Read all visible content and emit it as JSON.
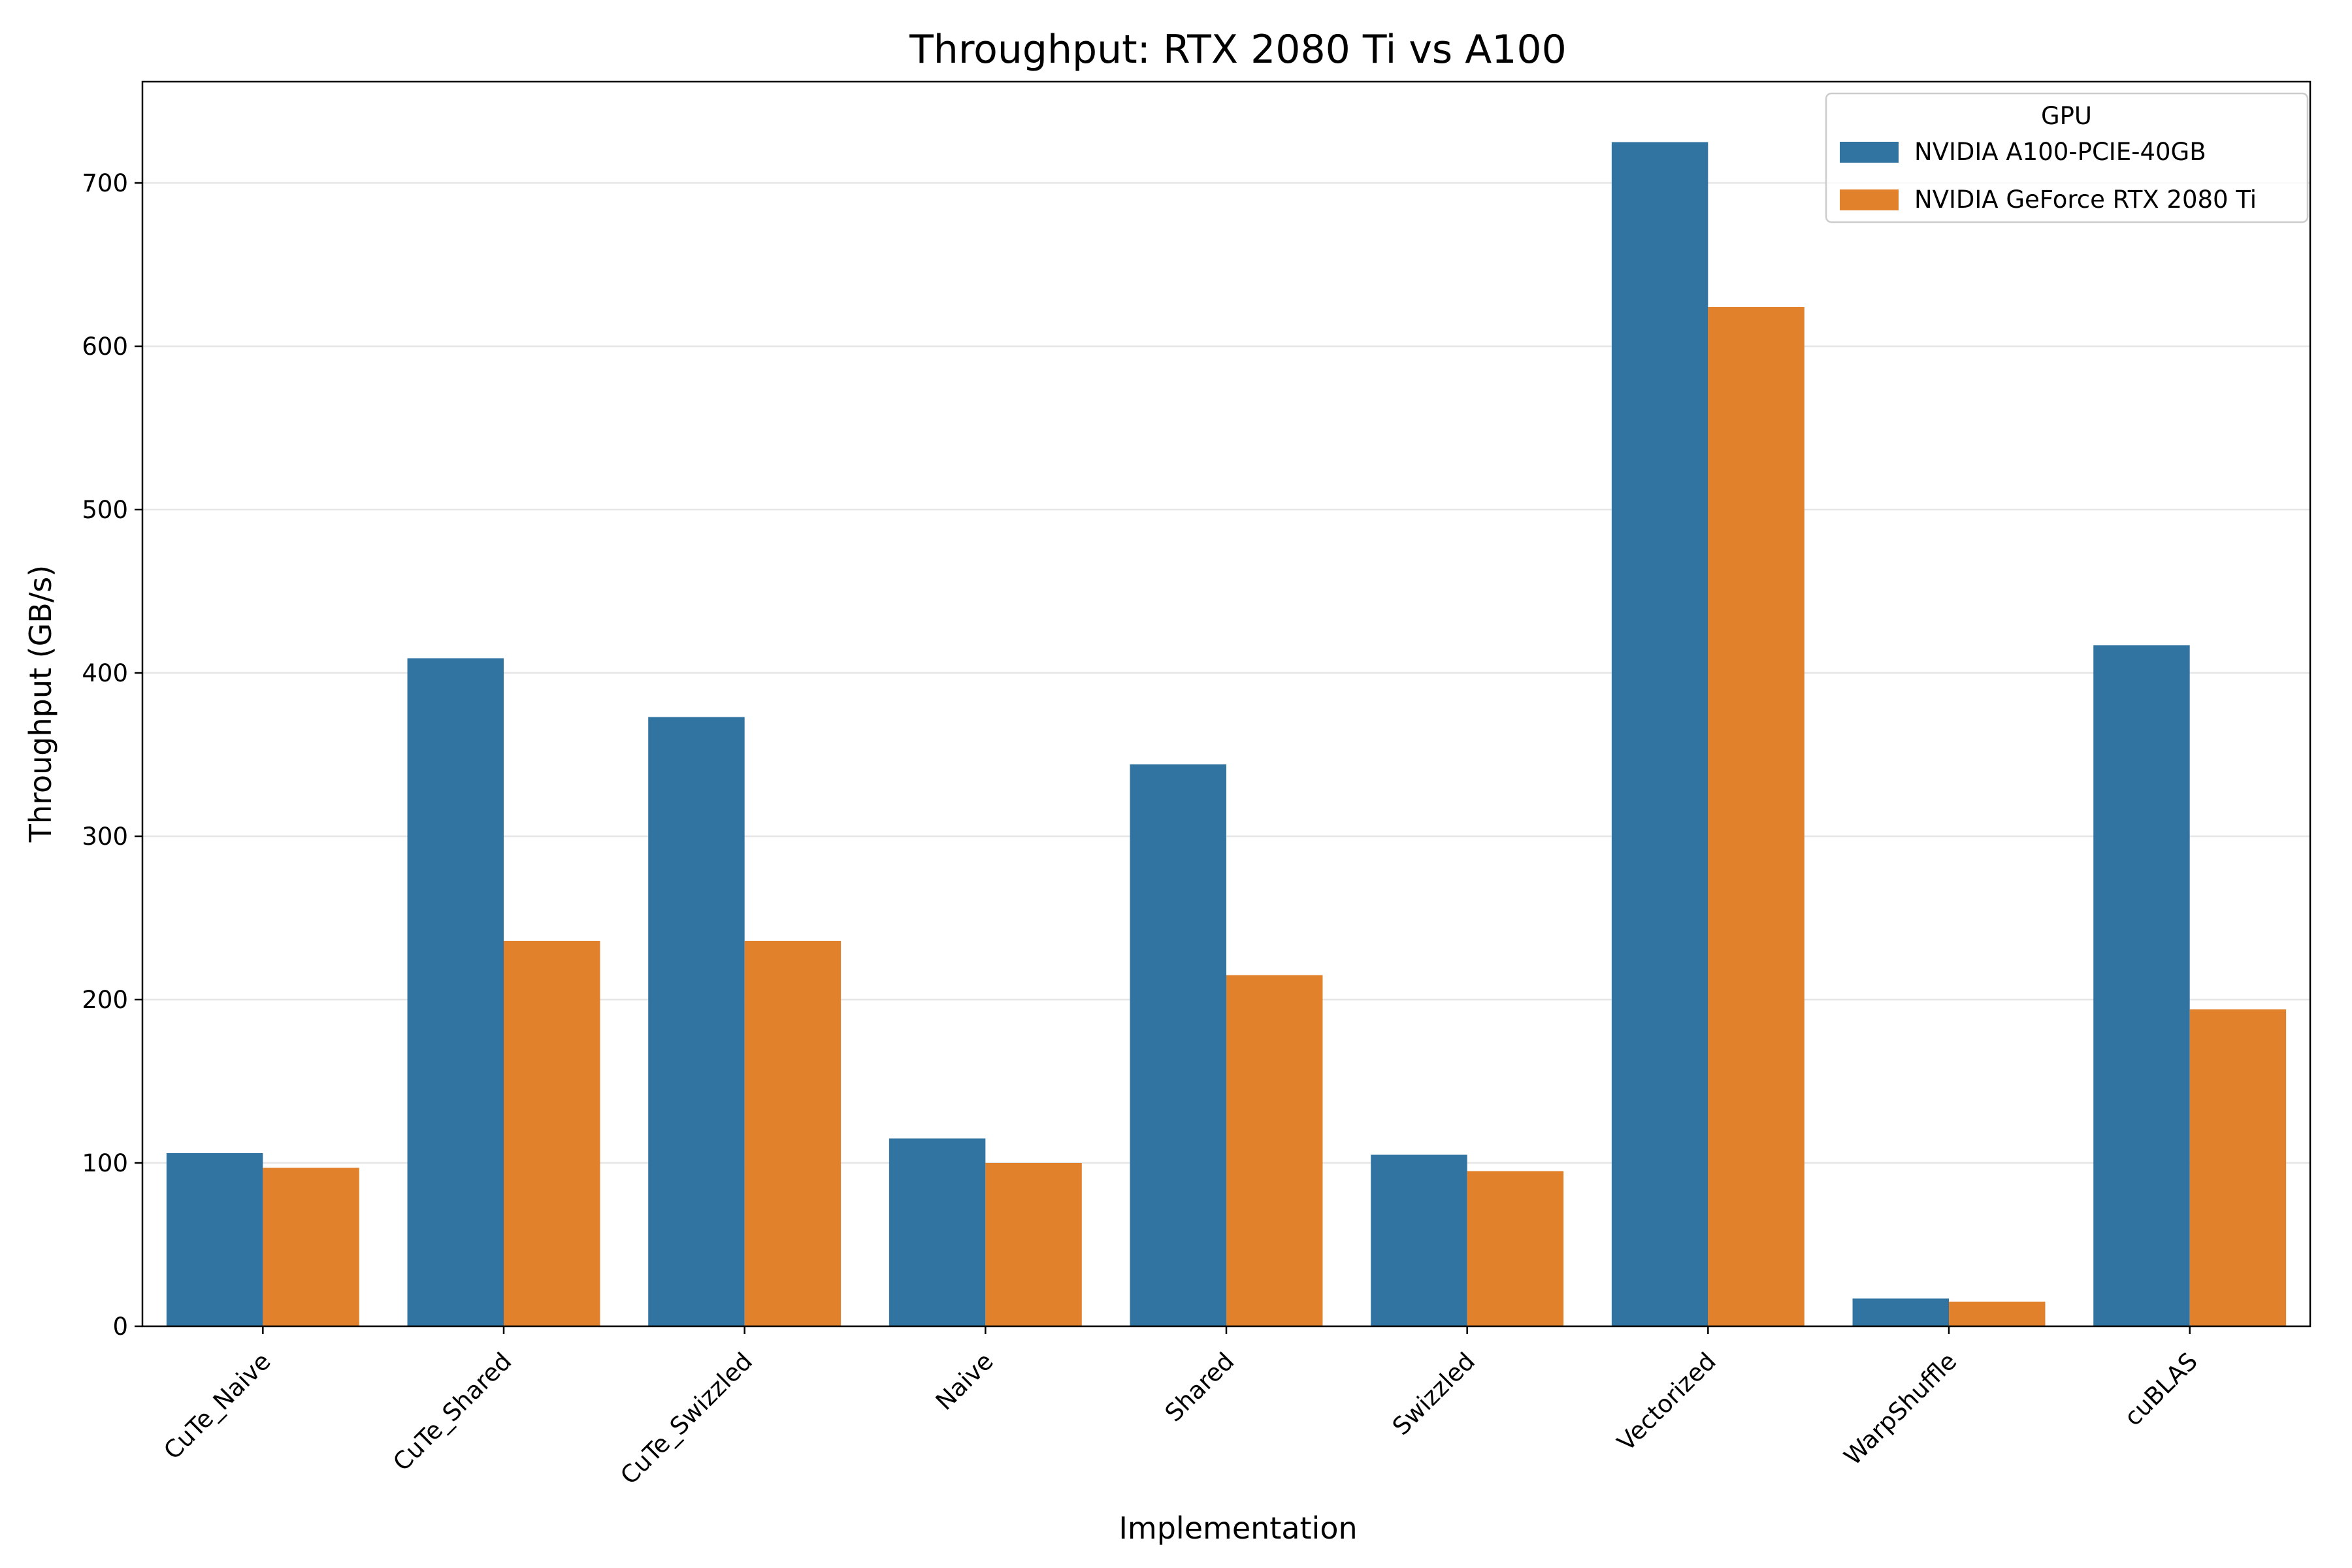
{
  "chart_data": {
    "type": "bar",
    "title": "Throughput: RTX 2080 Ti vs A100",
    "xlabel": "Implementation",
    "ylabel": "Throughput (GB/s)",
    "ylim": [
      0,
      762
    ],
    "yticks": [
      0,
      100,
      200,
      300,
      400,
      500,
      600,
      700
    ],
    "grid": "horizontal",
    "legend": {
      "title": "GPU",
      "placement": "top-right"
    },
    "categories": [
      "CuTe_Naive",
      "CuTe_Shared",
      "CuTe_Swizzled",
      "Naive",
      "Shared",
      "Swizzled",
      "Vectorized",
      "WarpShuffle",
      "cuBLAS"
    ],
    "series": [
      {
        "name": "NVIDIA A100-PCIE-40GB",
        "color": "#3274a1",
        "values": [
          106,
          409,
          373,
          115,
          344,
          105,
          725,
          17,
          417
        ]
      },
      {
        "name": "NVIDIA GeForce RTX 2080 Ti",
        "color": "#e1812c",
        "values": [
          97,
          236,
          236,
          100,
          215,
          95,
          624,
          15,
          194
        ]
      }
    ]
  }
}
